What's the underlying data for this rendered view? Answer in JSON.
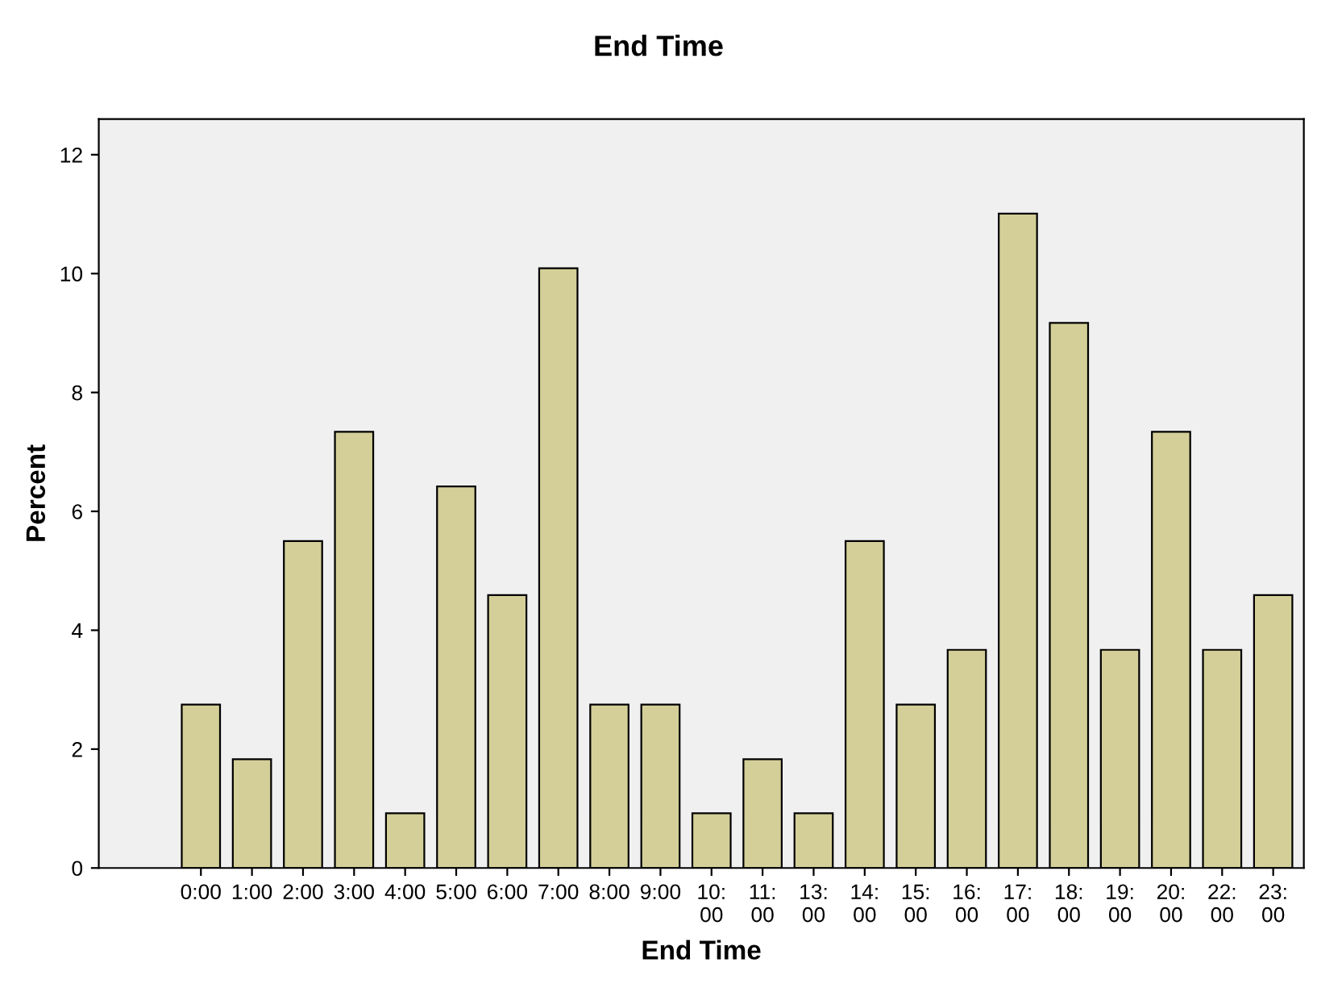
{
  "chart_data": {
    "type": "bar",
    "title": "End Time",
    "xlabel": "End Time",
    "ylabel": "Percent",
    "categories": [
      "0:00",
      "1:00",
      "2:00",
      "3:00",
      "4:00",
      "5:00",
      "6:00",
      "7:00",
      "8:00",
      "9:00",
      "10:00",
      "11:00",
      "13:00",
      "14:00",
      "15:00",
      "16:00",
      "17:00",
      "18:00",
      "19:00",
      "20:00",
      "22:00",
      "23:00"
    ],
    "values": [
      2.75,
      1.83,
      5.5,
      7.34,
      0.92,
      6.42,
      4.59,
      10.09,
      2.75,
      2.75,
      0.92,
      1.83,
      0.92,
      5.5,
      2.75,
      3.67,
      11.01,
      9.17,
      3.67,
      7.34,
      3.67,
      4.59
    ],
    "color": "#d4cf98",
    "ylim": [
      0,
      12.6
    ],
    "yticks": [
      0,
      2,
      4,
      6,
      8,
      10,
      12
    ],
    "grid": false
  }
}
